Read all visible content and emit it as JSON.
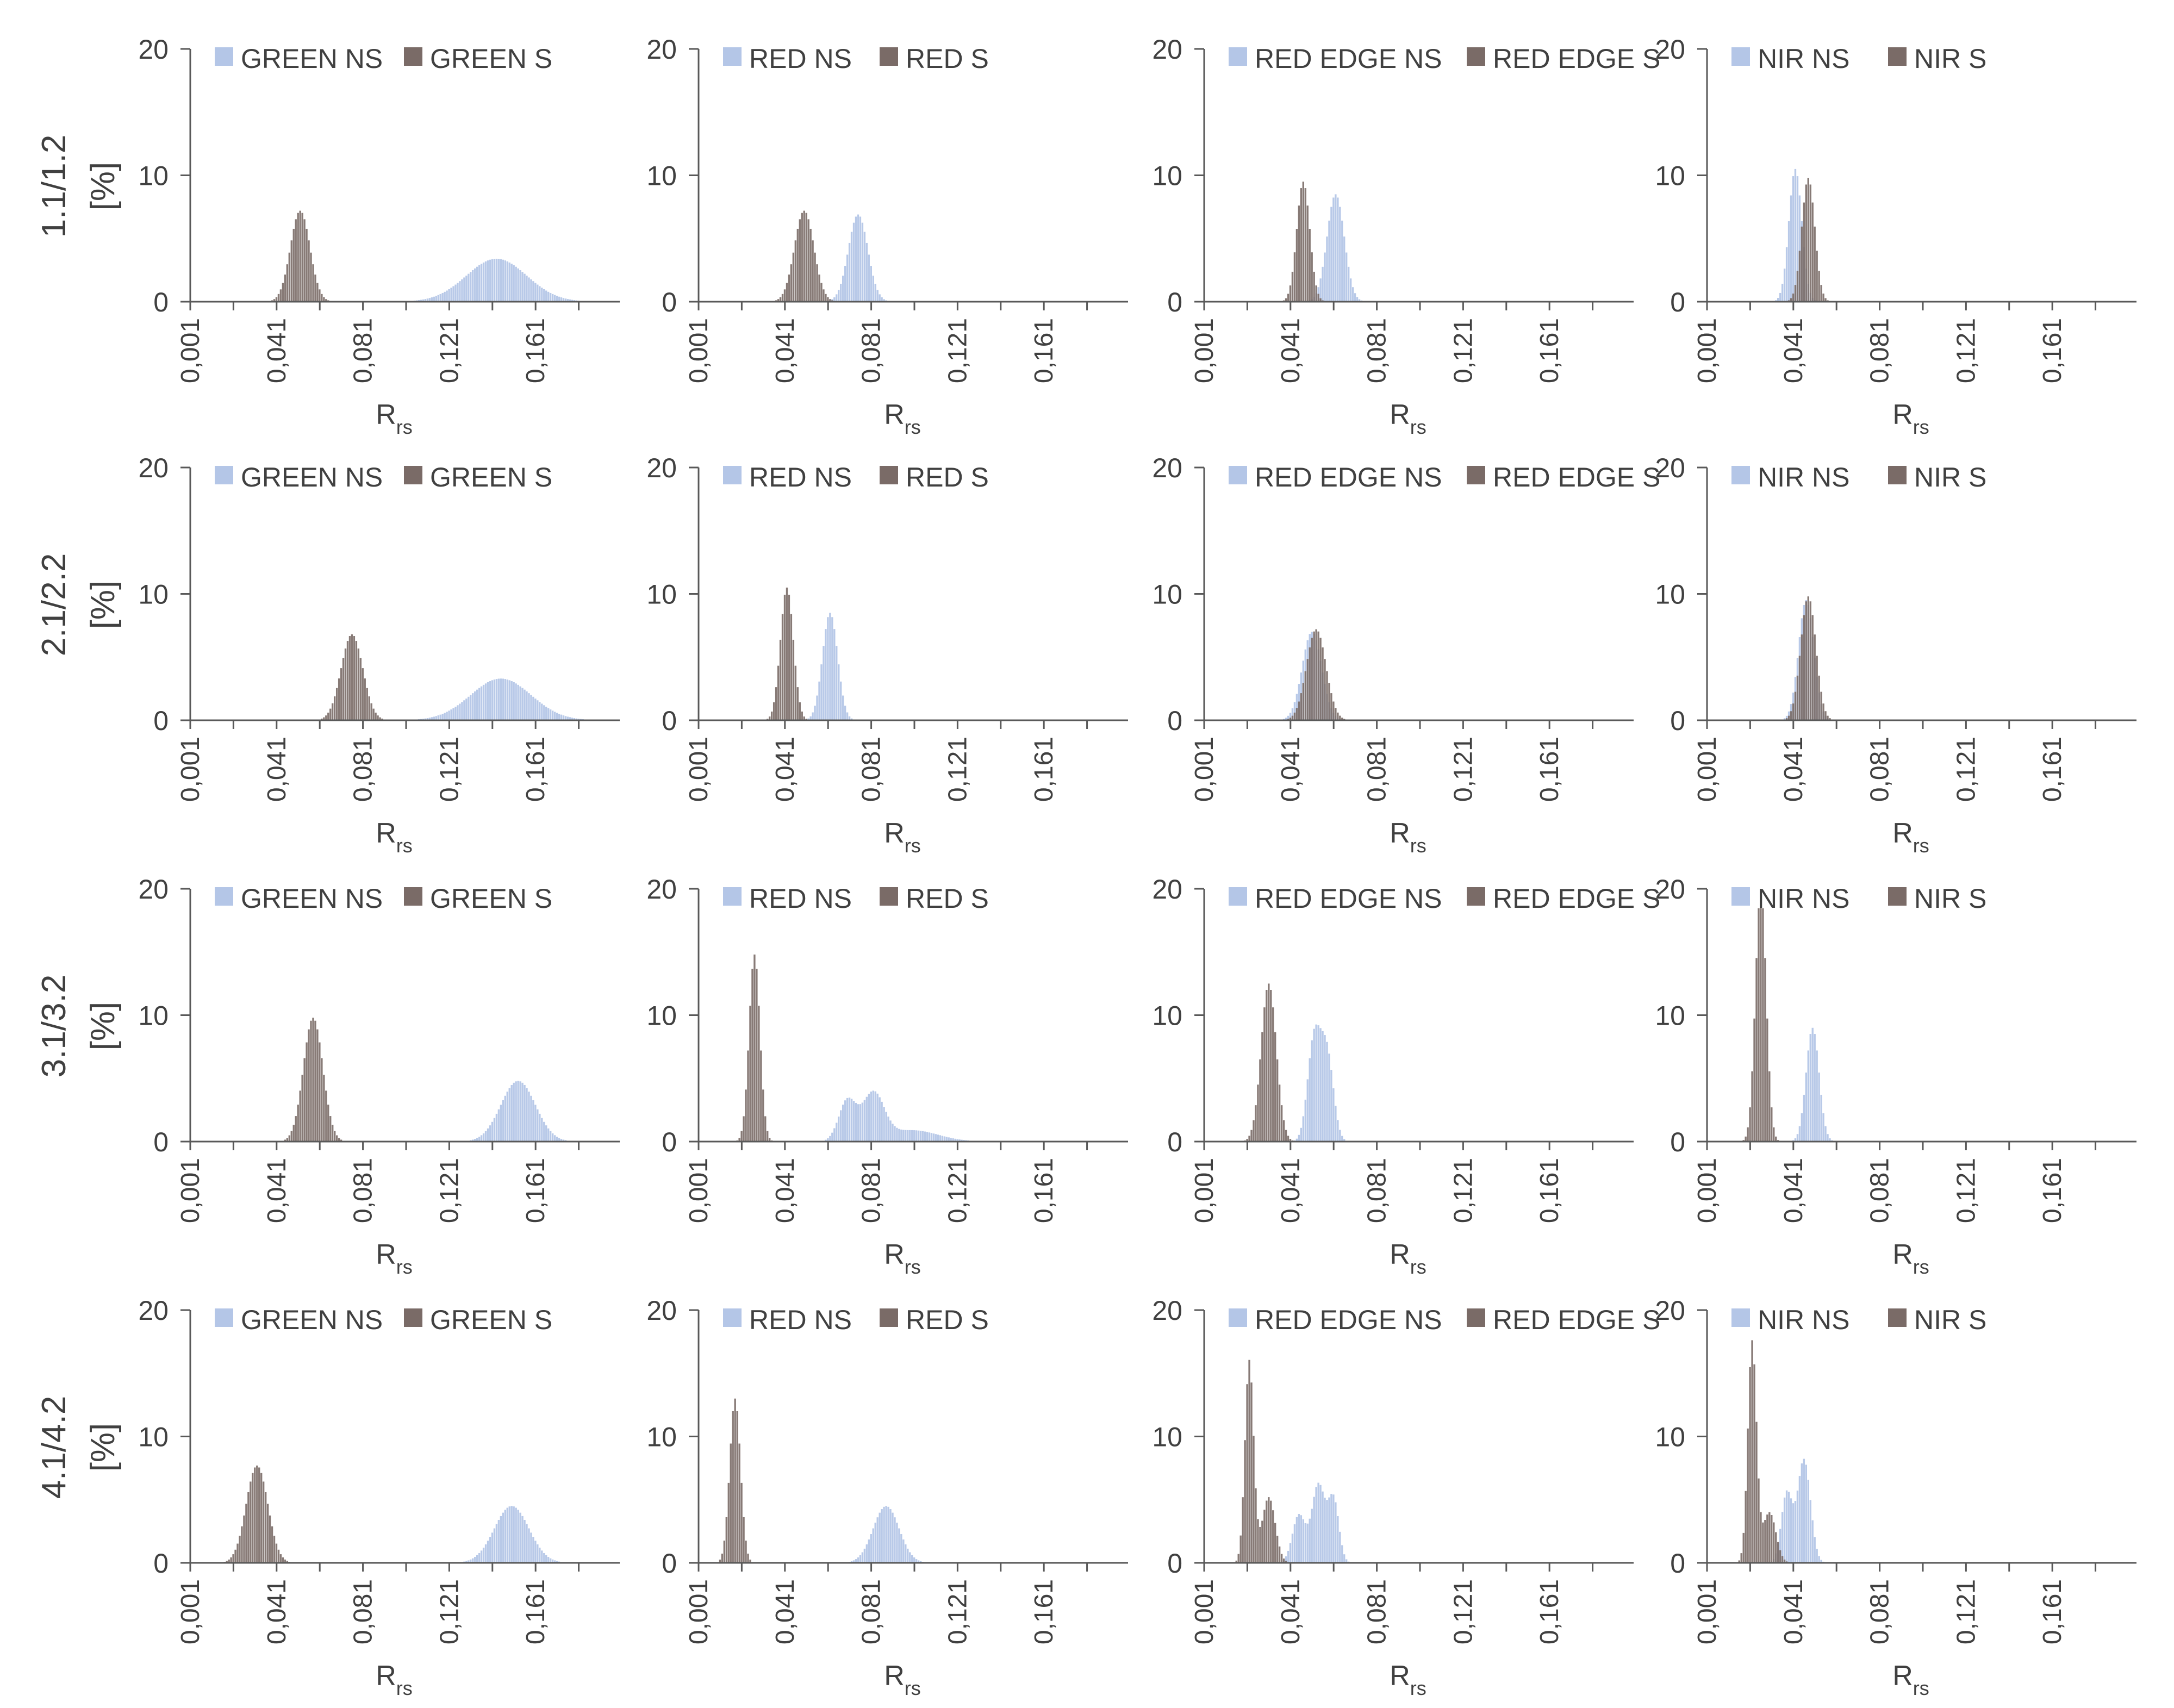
{
  "colors": {
    "ns": "#b4c6e7",
    "s": "#7a6b67",
    "axis": "#595959",
    "text": "#404040"
  },
  "row_labels": [
    {
      "scene": "1.1/1.2",
      "unit": "[%]"
    },
    {
      "scene": "2.1/2.2",
      "unit": "[%]"
    },
    {
      "scene": "3.1/3.2",
      "unit": "[%]"
    },
    {
      "scene": "4.1/4.2",
      "unit": "[%]"
    }
  ],
  "chart_data": [
    {
      "type": "bar",
      "row": 0,
      "col": 0,
      "xlabel": "R",
      "xlabel_sub": "rs",
      "ylim": [
        0,
        20
      ],
      "yticks": [
        "0",
        "10",
        "20"
      ],
      "xticks": [
        "0,001",
        "0,041",
        "0,081",
        "0,121",
        "0,161"
      ],
      "xrange": [
        0.001,
        0.2
      ],
      "legend_placement": "top",
      "series": [
        {
          "name": "GREEN NS",
          "peaks": [
            {
              "center": 0.143,
              "height": 3.4,
              "width": 0.014
            }
          ]
        },
        {
          "name": "GREEN S",
          "peaks": [
            {
              "center": 0.052,
              "height": 7.2,
              "width": 0.0045
            }
          ]
        }
      ]
    },
    {
      "type": "bar",
      "row": 0,
      "col": 1,
      "xlabel": "R",
      "xlabel_sub": "rs",
      "ylim": [
        0,
        20
      ],
      "yticks": [
        "0",
        "10",
        "20"
      ],
      "xticks": [
        "0,001",
        "0,041",
        "0,081",
        "0,121",
        "0,161"
      ],
      "xrange": [
        0.001,
        0.2
      ],
      "legend_placement": "top",
      "series": [
        {
          "name": "RED NS",
          "peaks": [
            {
              "center": 0.075,
              "height": 6.9,
              "width": 0.0045
            }
          ]
        },
        {
          "name": "RED S",
          "peaks": [
            {
              "center": 0.05,
              "height": 7.2,
              "width": 0.0045
            }
          ]
        }
      ]
    },
    {
      "type": "bar",
      "row": 0,
      "col": 2,
      "xlabel": "R",
      "xlabel_sub": "rs",
      "ylim": [
        0,
        20
      ],
      "yticks": [
        "0",
        "10",
        "20"
      ],
      "xticks": [
        "0,001",
        "0,041",
        "0,081",
        "0,121",
        "0,161"
      ],
      "xrange": [
        0.001,
        0.2
      ],
      "legend_placement": "top",
      "series": [
        {
          "name": "RED EDGE NS",
          "peaks": [
            {
              "center": 0.062,
              "height": 8.5,
              "width": 0.004
            }
          ]
        },
        {
          "name": "RED EDGE S",
          "peaks": [
            {
              "center": 0.047,
              "height": 9.5,
              "width": 0.003
            }
          ]
        }
      ]
    },
    {
      "type": "bar",
      "row": 0,
      "col": 3,
      "xlabel": "R",
      "xlabel_sub": "rs",
      "ylim": [
        0,
        20
      ],
      "yticks": [
        "0",
        "10",
        "20"
      ],
      "xticks": [
        "0,001",
        "0,041",
        "0,081",
        "0,121",
        "0,161"
      ],
      "xrange": [
        0.001,
        0.2
      ],
      "legend_placement": "top",
      "series": [
        {
          "name": "NIR NS",
          "peaks": [
            {
              "center": 0.042,
              "height": 10.5,
              "width": 0.003
            }
          ]
        },
        {
          "name": "NIR S",
          "peaks": [
            {
              "center": 0.048,
              "height": 9.8,
              "width": 0.003
            }
          ]
        }
      ]
    },
    {
      "type": "bar",
      "row": 1,
      "col": 0,
      "xlabel": "R",
      "xlabel_sub": "rs",
      "ylim": [
        0,
        20
      ],
      "yticks": [
        "0",
        "10",
        "20"
      ],
      "xticks": [
        "0,001",
        "0,041",
        "0,081",
        "0,121",
        "0,161"
      ],
      "xrange": [
        0.001,
        0.2
      ],
      "legend_placement": "top",
      "series": [
        {
          "name": "GREEN NS",
          "peaks": [
            {
              "center": 0.145,
              "height": 3.3,
              "width": 0.014
            }
          ]
        },
        {
          "name": "GREEN S",
          "peaks": [
            {
              "center": 0.076,
              "height": 6.8,
              "width": 0.005
            }
          ]
        }
      ]
    },
    {
      "type": "bar",
      "row": 1,
      "col": 1,
      "xlabel": "R",
      "xlabel_sub": "rs",
      "ylim": [
        0,
        20
      ],
      "yticks": [
        "0",
        "10",
        "20"
      ],
      "xticks": [
        "0,001",
        "0,041",
        "0,081",
        "0,121",
        "0,161"
      ],
      "xrange": [
        0.001,
        0.2
      ],
      "legend_placement": "top",
      "series": [
        {
          "name": "RED NS",
          "peaks": [
            {
              "center": 0.062,
              "height": 8.5,
              "width": 0.0035
            }
          ]
        },
        {
          "name": "RED S",
          "peaks": [
            {
              "center": 0.042,
              "height": 10.5,
              "width": 0.003
            }
          ]
        }
      ]
    },
    {
      "type": "bar",
      "row": 1,
      "col": 2,
      "xlabel": "R",
      "xlabel_sub": "rs",
      "ylim": [
        0,
        20
      ],
      "yticks": [
        "0",
        "10",
        "20"
      ],
      "xticks": [
        "0,001",
        "0,041",
        "0,081",
        "0,121",
        "0,161"
      ],
      "xrange": [
        0.001,
        0.2
      ],
      "legend_placement": "top",
      "series": [
        {
          "name": "RED EDGE NS",
          "peaks": [
            {
              "center": 0.051,
              "height": 7.0,
              "width": 0.0045
            }
          ]
        },
        {
          "name": "RED EDGE S",
          "peaks": [
            {
              "center": 0.053,
              "height": 7.2,
              "width": 0.0045
            }
          ]
        }
      ]
    },
    {
      "type": "bar",
      "row": 1,
      "col": 3,
      "xlabel": "R",
      "xlabel_sub": "rs",
      "ylim": [
        0,
        20
      ],
      "yticks": [
        "0",
        "10",
        "20"
      ],
      "xticks": [
        "0,001",
        "0,041",
        "0,081",
        "0,121",
        "0,161"
      ],
      "xrange": [
        0.001,
        0.2
      ],
      "legend_placement": "top",
      "series": [
        {
          "name": "NIR NS",
          "peaks": [
            {
              "center": 0.047,
              "height": 9.5,
              "width": 0.0035
            }
          ]
        },
        {
          "name": "NIR S",
          "peaks": [
            {
              "center": 0.048,
              "height": 9.8,
              "width": 0.0035
            }
          ]
        }
      ]
    },
    {
      "type": "bar",
      "row": 2,
      "col": 0,
      "xlabel": "R",
      "xlabel_sub": "rs",
      "ylim": [
        0,
        20
      ],
      "yticks": [
        "0",
        "10",
        "20"
      ],
      "xticks": [
        "0,001",
        "0,041",
        "0,081",
        "0,121",
        "0,161"
      ],
      "xrange": [
        0.001,
        0.2
      ],
      "legend_placement": "top",
      "series": [
        {
          "name": "GREEN NS",
          "peaks": [
            {
              "center": 0.153,
              "height": 4.8,
              "width": 0.008
            }
          ]
        },
        {
          "name": "GREEN S",
          "peaks": [
            {
              "center": 0.058,
              "height": 9.8,
              "width": 0.0045
            }
          ]
        }
      ]
    },
    {
      "type": "bar",
      "row": 2,
      "col": 1,
      "xlabel": "R",
      "xlabel_sub": "rs",
      "ylim": [
        0,
        20
      ],
      "yticks": [
        "0",
        "10",
        "20"
      ],
      "xticks": [
        "0,001",
        "0,041",
        "0,081",
        "0,121",
        "0,161"
      ],
      "xrange": [
        0.001,
        0.2
      ],
      "legend_placement": "top",
      "series": [
        {
          "name": "RED NS",
          "peaks": [
            {
              "center": 0.07,
              "height": 3.2,
              "width": 0.004
            },
            {
              "center": 0.082,
              "height": 3.7,
              "width": 0.005
            },
            {
              "center": 0.1,
              "height": 0.9,
              "width": 0.012
            }
          ]
        },
        {
          "name": "RED S",
          "peaks": [
            {
              "center": 0.027,
              "height": 14.8,
              "width": 0.0025
            }
          ]
        }
      ]
    },
    {
      "type": "bar",
      "row": 2,
      "col": 2,
      "xlabel": "R",
      "xlabel_sub": "rs",
      "ylim": [
        0,
        20
      ],
      "yticks": [
        "0",
        "10",
        "20"
      ],
      "xticks": [
        "0,001",
        "0,041",
        "0,081",
        "0,121",
        "0,161"
      ],
      "xrange": [
        0.001,
        0.2
      ],
      "legend_placement": "top",
      "series": [
        {
          "name": "RED EDGE NS",
          "peaks": [
            {
              "center": 0.052,
              "height": 8.0,
              "width": 0.003
            },
            {
              "center": 0.058,
              "height": 6.8,
              "width": 0.003
            }
          ]
        },
        {
          "name": "RED EDGE S",
          "peaks": [
            {
              "center": 0.031,
              "height": 12.5,
              "width": 0.0035
            }
          ]
        }
      ]
    },
    {
      "type": "bar",
      "row": 2,
      "col": 3,
      "xlabel": "R",
      "xlabel_sub": "rs",
      "ylim": [
        0,
        20
      ],
      "yticks": [
        "0",
        "10",
        "20"
      ],
      "xticks": [
        "0,001",
        "0,041",
        "0,081",
        "0,121",
        "0,161"
      ],
      "xrange": [
        0.001,
        0.2
      ],
      "legend_placement": "top",
      "series": [
        {
          "name": "NIR NS",
          "peaks": [
            {
              "center": 0.05,
              "height": 9.0,
              "width": 0.003
            }
          ]
        },
        {
          "name": "NIR S",
          "peaks": [
            {
              "center": 0.026,
              "height": 20.0,
              "width": 0.0025
            }
          ]
        }
      ]
    },
    {
      "type": "bar",
      "row": 3,
      "col": 0,
      "xlabel": "R",
      "xlabel_sub": "rs",
      "ylim": [
        0,
        20
      ],
      "yticks": [
        "0",
        "10",
        "20"
      ],
      "xticks": [
        "0,001",
        "0,041",
        "0,081",
        "0,121",
        "0,161"
      ],
      "xrange": [
        0.001,
        0.2
      ],
      "legend_placement": "top",
      "series": [
        {
          "name": "GREEN NS",
          "peaks": [
            {
              "center": 0.15,
              "height": 4.5,
              "width": 0.008
            }
          ]
        },
        {
          "name": "GREEN S",
          "peaks": [
            {
              "center": 0.032,
              "height": 7.7,
              "width": 0.005
            }
          ]
        }
      ]
    },
    {
      "type": "bar",
      "row": 3,
      "col": 1,
      "xlabel": "R",
      "xlabel_sub": "rs",
      "ylim": [
        0,
        20
      ],
      "yticks": [
        "0",
        "10",
        "20"
      ],
      "xticks": [
        "0,001",
        "0,041",
        "0,081",
        "0,121",
        "0,161"
      ],
      "xrange": [
        0.001,
        0.2
      ],
      "legend_placement": "top",
      "series": [
        {
          "name": "RED NS",
          "peaks": [
            {
              "center": 0.088,
              "height": 4.5,
              "width": 0.006
            }
          ]
        },
        {
          "name": "RED S",
          "peaks": [
            {
              "center": 0.018,
              "height": 13.0,
              "width": 0.0025
            }
          ]
        }
      ]
    },
    {
      "type": "bar",
      "row": 3,
      "col": 2,
      "xlabel": "R",
      "xlabel_sub": "rs",
      "ylim": [
        0,
        20
      ],
      "yticks": [
        "0",
        "10",
        "20"
      ],
      "xticks": [
        "0,001",
        "0,041",
        "0,081",
        "0,121",
        "0,161"
      ],
      "xrange": [
        0.001,
        0.2
      ],
      "legend_placement": "top",
      "series": [
        {
          "name": "RED EDGE NS",
          "peaks": [
            {
              "center": 0.045,
              "height": 3.8,
              "width": 0.003
            },
            {
              "center": 0.054,
              "height": 6.2,
              "width": 0.003
            },
            {
              "center": 0.061,
              "height": 5.0,
              "width": 0.0025
            }
          ]
        },
        {
          "name": "RED EDGE S",
          "peaks": [
            {
              "center": 0.022,
              "height": 16.0,
              "width": 0.002
            },
            {
              "center": 0.031,
              "height": 5.2,
              "width": 0.003
            }
          ]
        }
      ]
    },
    {
      "type": "bar",
      "row": 3,
      "col": 3,
      "xlabel": "R",
      "xlabel_sub": "rs",
      "ylim": [
        0,
        20
      ],
      "yticks": [
        "0",
        "10",
        "20"
      ],
      "xticks": [
        "0,001",
        "0,041",
        "0,081",
        "0,121",
        "0,161"
      ],
      "xrange": [
        0.001,
        0.2
      ],
      "legend_placement": "top",
      "series": [
        {
          "name": "NIR NS",
          "peaks": [
            {
              "center": 0.038,
              "height": 5.5,
              "width": 0.0025
            },
            {
              "center": 0.046,
              "height": 8.2,
              "width": 0.003
            }
          ]
        },
        {
          "name": "NIR S",
          "peaks": [
            {
              "center": 0.022,
              "height": 17.5,
              "width": 0.002
            },
            {
              "center": 0.03,
              "height": 4.0,
              "width": 0.003
            }
          ]
        }
      ]
    }
  ]
}
